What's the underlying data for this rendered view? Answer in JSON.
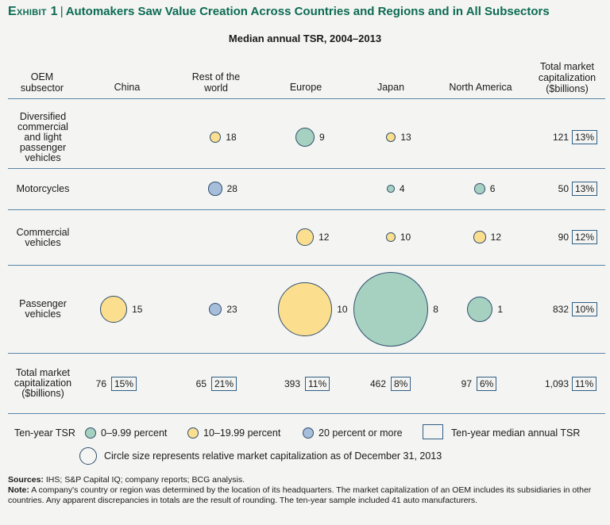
{
  "chart_data": {
    "type": "bubble-matrix",
    "exhibit_label": "Exhibit 1",
    "title": "Automakers Saw Value Creation Across Countries and Regions and in All Subsectors",
    "subtitle": "Median annual TSR, 2004–2013",
    "row_header": "OEM subsector",
    "columns": [
      "China",
      "Rest of the world",
      "Europe",
      "Japan",
      "North America"
    ],
    "total_header": "Total market capitalization ($billions)",
    "rows": [
      {
        "name": "Diversified commercial and light passenger vehicles",
        "cells": [
          null,
          {
            "tsr": 18,
            "category": "10–19.99 percent",
            "size": 1.0
          },
          {
            "tsr": 9,
            "category": "0–9.99 percent",
            "size": 2.7
          },
          {
            "tsr": 13,
            "category": "10–19.99 percent",
            "size": 0.75
          },
          null
        ],
        "total_market_cap": "121",
        "median_tsr": "13%"
      },
      {
        "name": "Motorcycles",
        "cells": [
          null,
          {
            "tsr": 28,
            "category": "20 percent or more",
            "size": 1.4
          },
          null,
          {
            "tsr": 4,
            "category": "0–9.99 percent",
            "size": 0.45
          },
          {
            "tsr": 6,
            "category": "0–9.99 percent",
            "size": 0.85
          }
        ],
        "total_market_cap": "50",
        "median_tsr": "13%"
      },
      {
        "name": "Commercial vehicles",
        "cells": [
          null,
          null,
          {
            "tsr": 12,
            "category": "10–19.99 percent",
            "size": 2.3
          },
          {
            "tsr": 10,
            "category": "10–19.99 percent",
            "size": 0.65
          },
          {
            "tsr": 12,
            "category": "10–19.99 percent",
            "size": 1.1
          }
        ],
        "total_market_cap": "90",
        "median_tsr": "12%"
      },
      {
        "name": "Passenger vehicles",
        "cells": [
          {
            "tsr": 15,
            "category": "10–19.99 percent",
            "size": 5.5
          },
          {
            "tsr": 23,
            "category": "20 percent or more",
            "size": 1.3
          },
          {
            "tsr": 10,
            "category": "10–19.99 percent",
            "size": 22
          },
          {
            "tsr": 8,
            "category": "0–9.99 percent",
            "size": 42
          },
          {
            "tsr": 1,
            "category": "0–9.99 percent",
            "size": 5
          }
        ],
        "total_market_cap": "832",
        "median_tsr": "10%"
      }
    ],
    "totals_label": "Total market capitalization ($billions)",
    "totals": [
      {
        "market_cap": "76",
        "median_tsr": "15%"
      },
      {
        "market_cap": "65",
        "median_tsr": "21%"
      },
      {
        "market_cap": "393",
        "median_tsr": "11%"
      },
      {
        "market_cap": "462",
        "median_tsr": "8%"
      },
      {
        "market_cap": "97",
        "median_tsr": "6%"
      }
    ],
    "grand_total": {
      "market_cap": "1,093",
      "median_tsr": "11%"
    },
    "legend": {
      "title": "Ten-year TSR",
      "categories": [
        {
          "label": "0–9.99 percent",
          "color": "#a6d1c0"
        },
        {
          "label": "10–19.99 percent",
          "color": "#fbdf8f"
        },
        {
          "label": "20 percent or more",
          "color": "#a7bedb"
        }
      ],
      "box_label": "Ten-year median annual TSR",
      "size_label": "Circle size represents relative market capitalization as of December 31, 2013"
    }
  },
  "footnotes": {
    "sources_label": "Sources:",
    "sources_text": "IHS; S&P Capital IQ; company reports; BCG analysis.",
    "note_label": "Note:",
    "note_text": "A company's country or region was determined by the location of its headquarters. The market capitalization of an OEM includes its subsidiaries in other countries. Any apparent discrepancies in totals are the result of rounding. The ten-year sample included 41 auto manufacturers."
  },
  "colors": {
    "title_green": "#0b6b53",
    "rule_blue": "#5a86a8",
    "outline": "#2f4f6f"
  }
}
